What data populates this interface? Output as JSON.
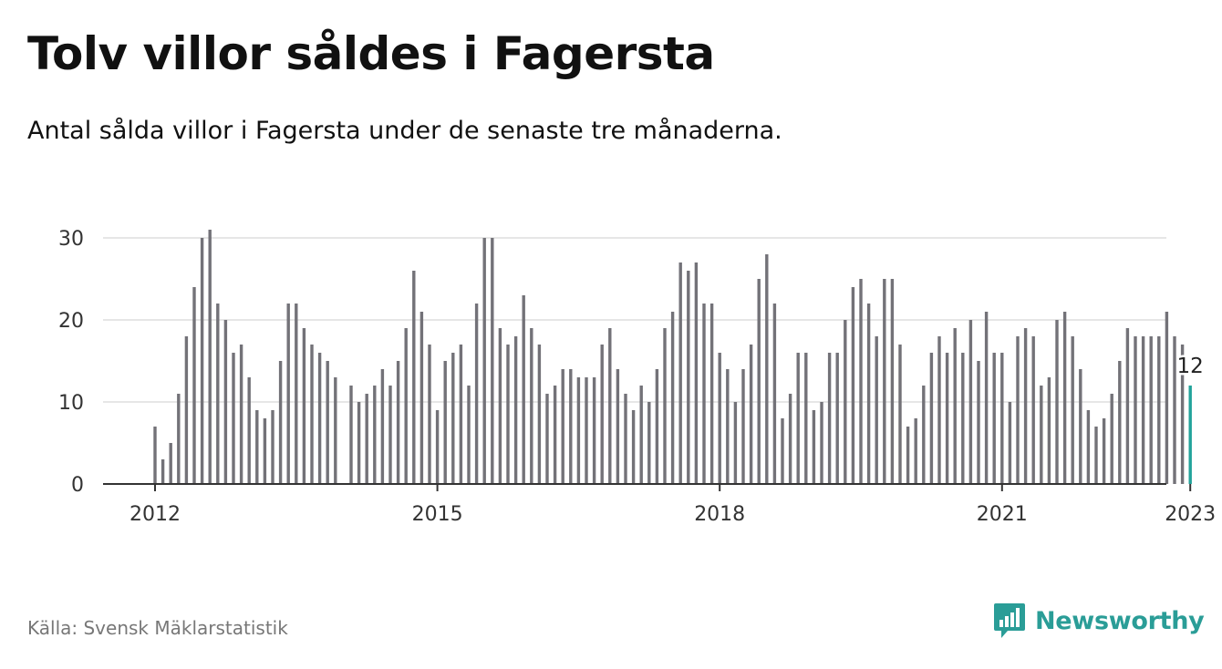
{
  "header": {
    "title": "Tolv villor såldes i Fagersta",
    "subtitle": "Antal sålda villor i Fagersta under de senaste tre månaderna."
  },
  "footer": {
    "source": "Källa: Svensk Mäklarstatistik",
    "brand": "Newsworthy"
  },
  "colors": {
    "bar": "#737278",
    "highlight": "#22a39b",
    "grid": "#dddddd",
    "axis": "#333333",
    "brand": "#2a9d97"
  },
  "icons": {
    "brand_logo": "newsworthy-logo-icon"
  },
  "chart_data": {
    "type": "bar",
    "title": "Tolv villor såldes i Fagersta",
    "subtitle": "Antal sålda villor i Fagersta under de senaste tre månaderna.",
    "xlabel": "",
    "ylabel": "",
    "start": "2012-01",
    "x_ticks": [
      "2012",
      "2015",
      "2018",
      "2021",
      "2023"
    ],
    "x_tick_dates": [
      "2012-01",
      "2015-01",
      "2018-01",
      "2021-01",
      "2023-01"
    ],
    "y_ticks": [
      0,
      10,
      20,
      30
    ],
    "ylim": [
      0,
      33
    ],
    "grid": true,
    "legend": "none",
    "highlight_label": "12",
    "values": [
      7,
      3,
      5,
      11,
      18,
      24,
      30,
      31,
      22,
      20,
      16,
      17,
      13,
      9,
      8,
      9,
      15,
      22,
      22,
      19,
      17,
      16,
      15,
      13,
      null,
      12,
      10,
      11,
      12,
      14,
      12,
      15,
      19,
      26,
      21,
      17,
      9,
      15,
      16,
      17,
      12,
      22,
      30,
      30,
      19,
      17,
      18,
      23,
      19,
      17,
      11,
      12,
      14,
      14,
      13,
      13,
      13,
      17,
      19,
      14,
      11,
      9,
      12,
      10,
      14,
      19,
      21,
      27,
      26,
      27,
      22,
      22,
      16,
      14,
      10,
      14,
      17,
      25,
      28,
      22,
      8,
      11,
      16,
      16,
      9,
      10,
      16,
      16,
      20,
      24,
      25,
      22,
      18,
      25,
      25,
      17,
      7,
      8,
      12,
      16,
      18,
      16,
      19,
      16,
      20,
      15,
      21,
      16,
      16,
      10,
      18,
      19,
      18,
      12,
      13,
      20,
      21,
      18,
      14,
      9,
      7,
      8,
      11,
      15,
      19,
      18,
      18,
      18,
      18,
      21,
      18,
      17,
      12
    ]
  }
}
